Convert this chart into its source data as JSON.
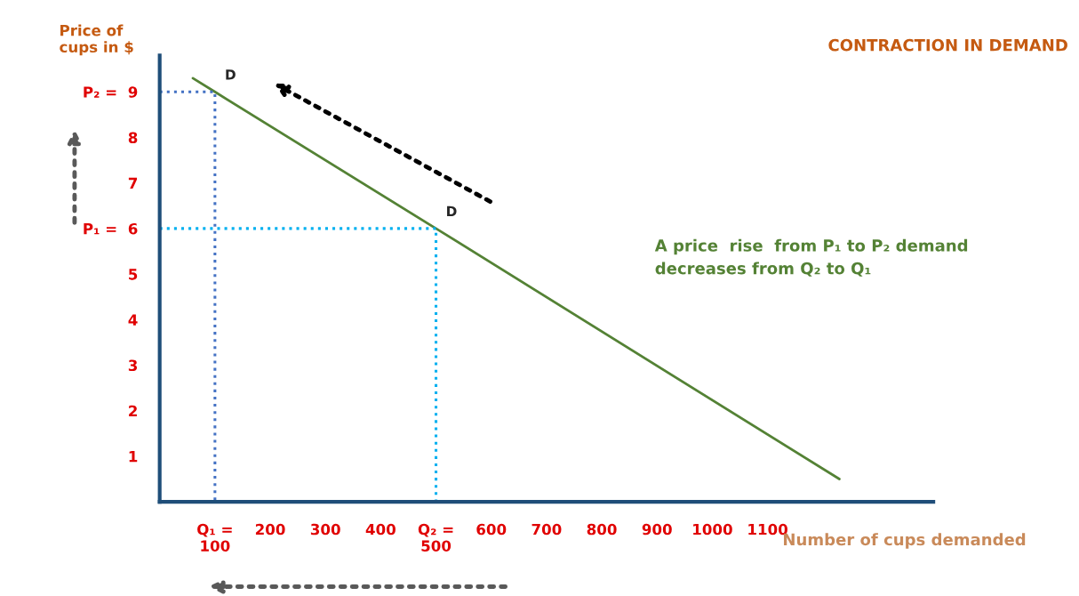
{
  "chart_data": {
    "type": "line",
    "title": "CONTRACTION IN DEMAND",
    "xlabel": "Number of cups demanded",
    "ylabel": "Price of\ncups in $",
    "xlim": [
      0,
      1400
    ],
    "ylim": [
      0,
      9.8
    ],
    "xticks": [
      {
        "value": 100,
        "label": "Q₁ =\n100"
      },
      200,
      300,
      400,
      {
        "value": 500,
        "label": "Q₂ =\n500"
      },
      600,
      700,
      800,
      900,
      1000,
      1100
    ],
    "yticks": [
      1,
      2,
      3,
      4,
      5,
      {
        "value": 6,
        "label": "P₁ =  6"
      },
      7,
      8,
      {
        "value": 9,
        "label": "P₂ =  9"
      }
    ],
    "grid": false,
    "legend": false,
    "series": [
      {
        "color": "#548235",
        "x": [
          60,
          100,
          500,
          1230
        ],
        "values": [
          9.3,
          9,
          6,
          0.5
        ],
        "line_style": "solid"
      },
      {
        "color": "#4472c4",
        "x": [
          0,
          100,
          100
        ],
        "values": [
          9,
          9,
          0
        ],
        "line_style": "dotted"
      },
      {
        "color": "#00b0f0",
        "x": [
          0,
          500,
          500
        ],
        "values": [
          6,
          6,
          0
        ],
        "line_style": "dotted"
      }
    ],
    "annotations": [
      {
        "text": "D",
        "x": 100,
        "y": 9
      },
      {
        "text": "D",
        "x": 500,
        "y": 6
      },
      "A price  rise  from P₁ to P₂ demand\ndecreases from Q₂ to Q₁"
    ]
  }
}
